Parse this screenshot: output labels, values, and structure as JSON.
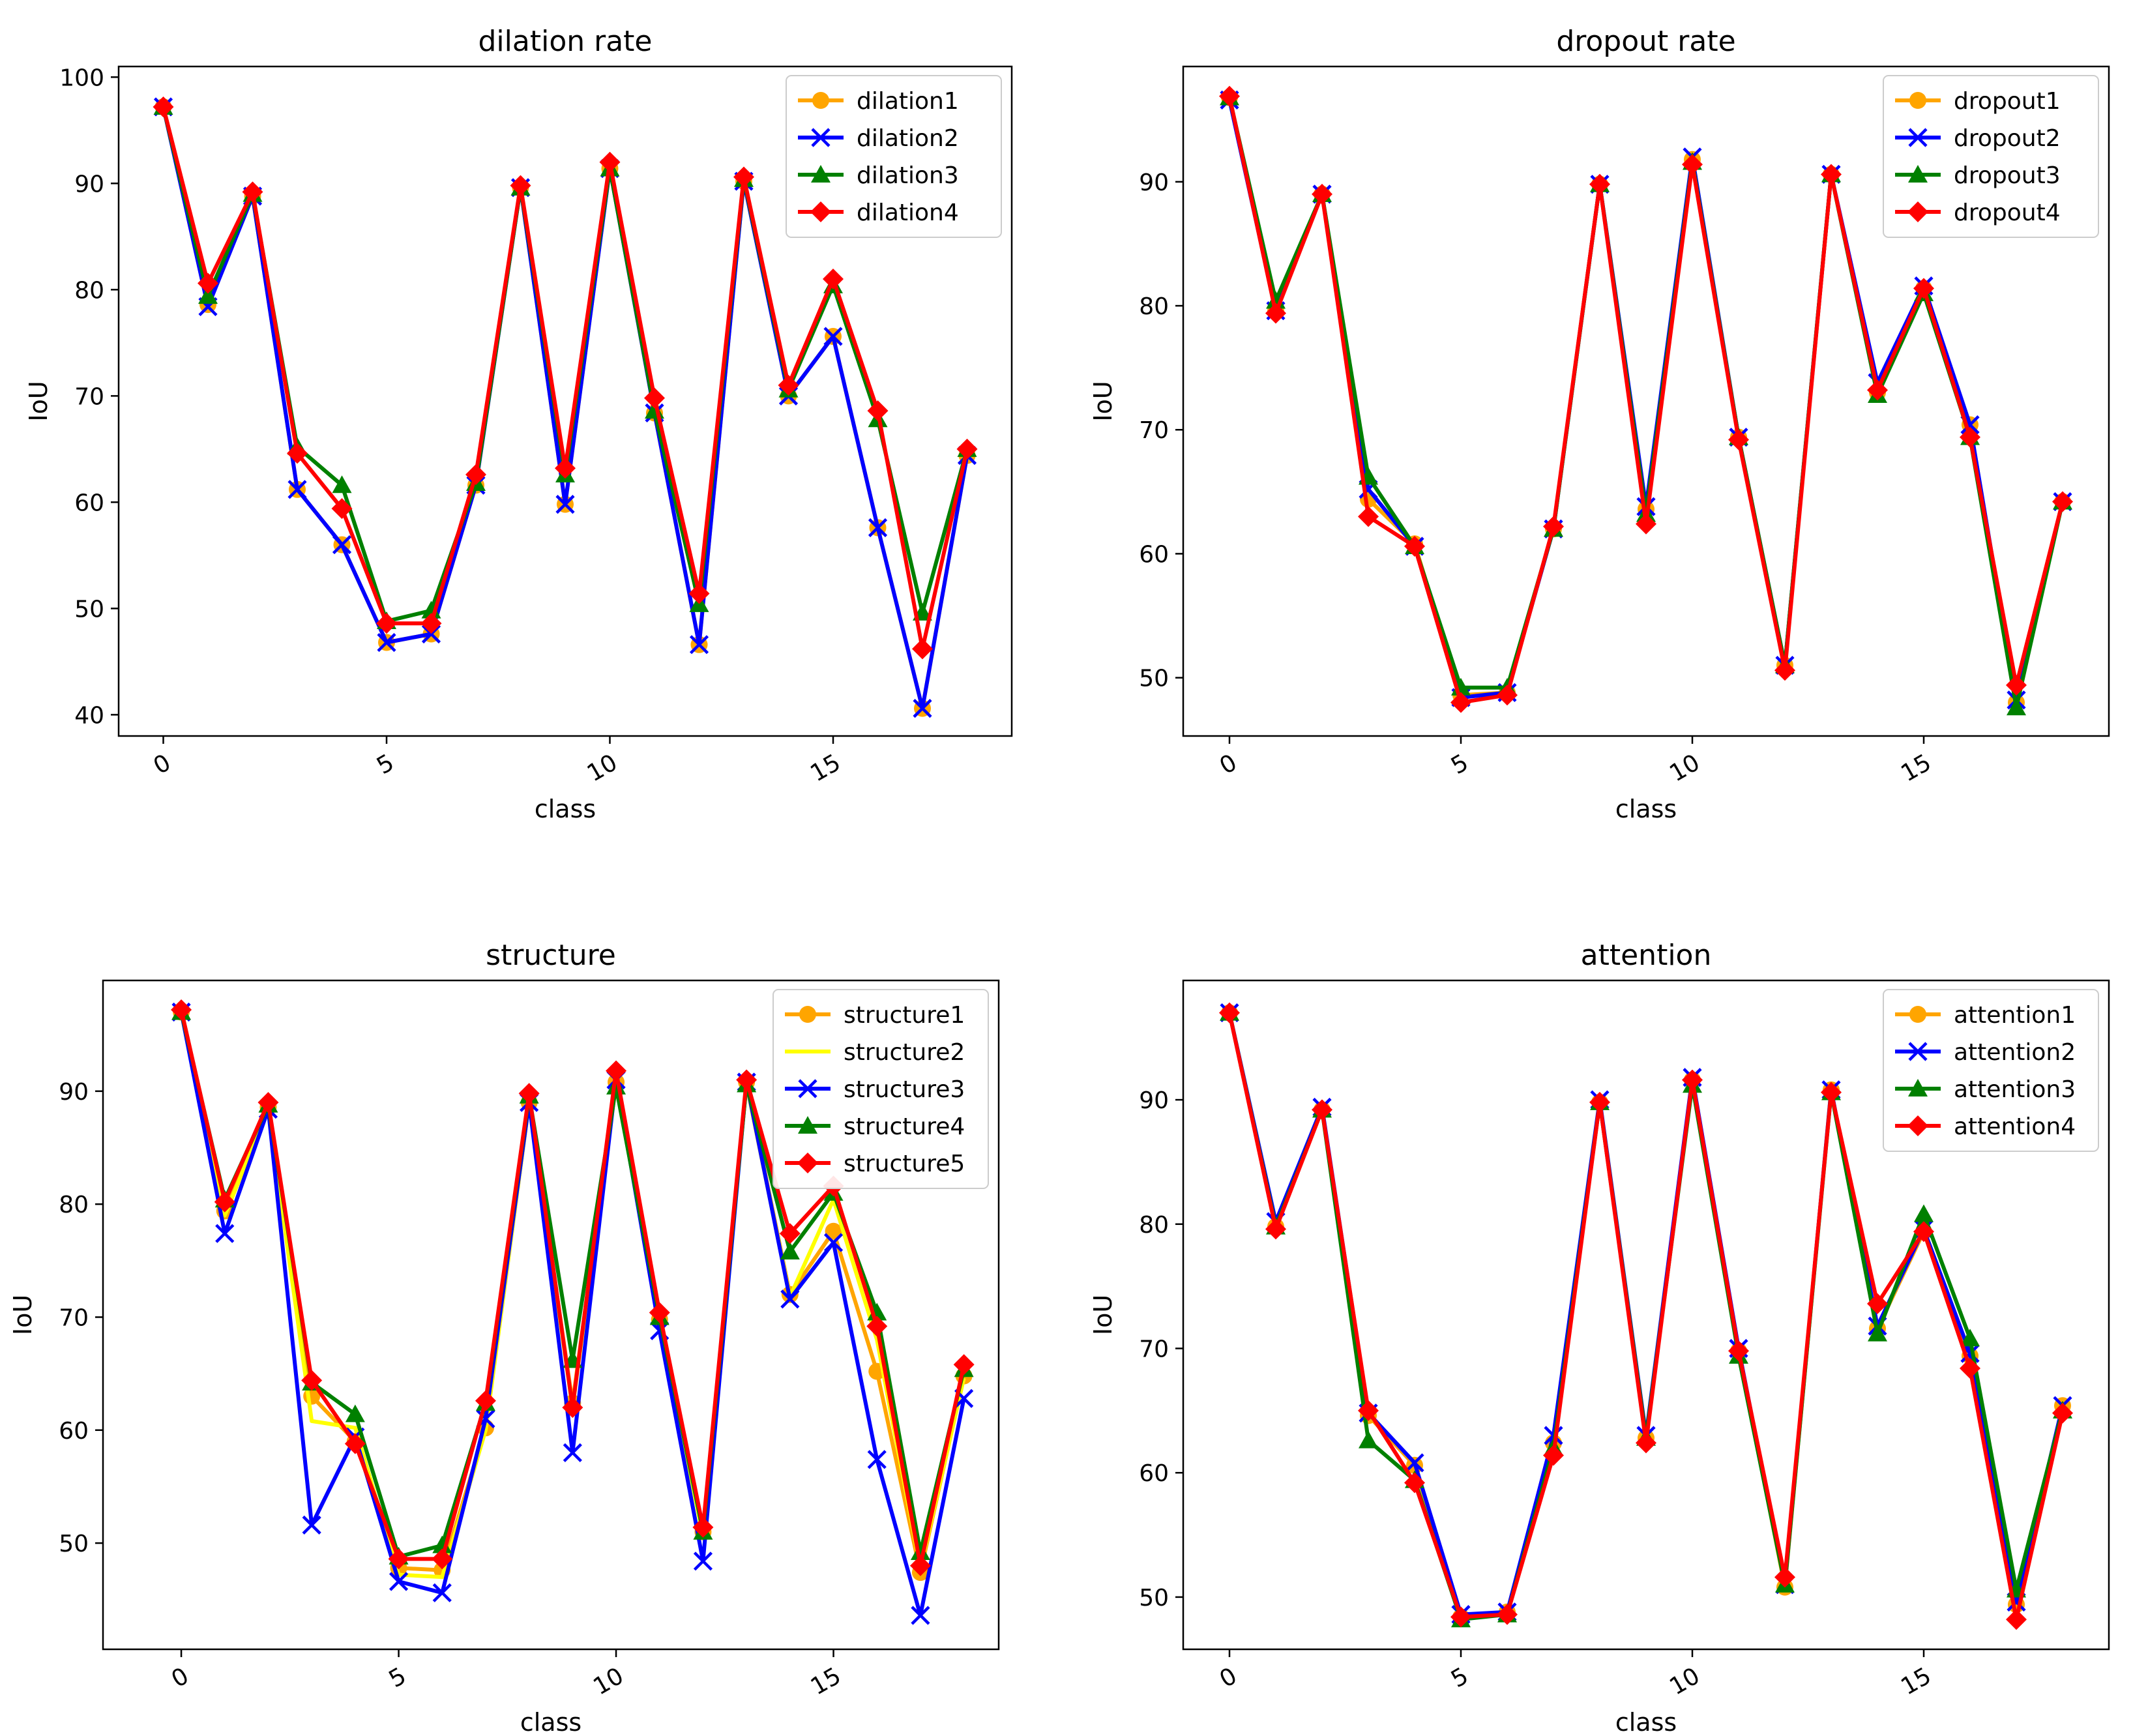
{
  "chart_data": [
    {
      "type": "line",
      "title": "dilation rate",
      "xlabel": "class",
      "ylabel": "IoU",
      "xlim": [
        -1,
        19
      ],
      "ylim": [
        38,
        101
      ],
      "xticks": [
        0,
        5,
        10,
        15
      ],
      "yticks": [
        40,
        50,
        60,
        70,
        80,
        90,
        100
      ],
      "legend_position": "top-right",
      "x": [
        0,
        1,
        2,
        3,
        4,
        5,
        6,
        7,
        8,
        9,
        10,
        11,
        12,
        13,
        14,
        15,
        16,
        17,
        18
      ],
      "series": [
        {
          "name": "dilation1",
          "color": "#FFA500",
          "marker": "circle",
          "values": [
            97.2,
            78.6,
            88.8,
            61.2,
            56.0,
            46.8,
            47.6,
            61.6,
            89.6,
            59.8,
            91.4,
            68.4,
            46.6,
            90.2,
            70.0,
            75.6,
            57.6,
            40.6,
            64.4
          ]
        },
        {
          "name": "dilation2",
          "color": "#0000FF",
          "marker": "x",
          "values": [
            97.2,
            78.4,
            88.8,
            61.2,
            56.0,
            46.8,
            47.6,
            61.6,
            89.6,
            59.8,
            91.4,
            68.4,
            46.6,
            90.2,
            70.0,
            75.6,
            57.6,
            40.6,
            64.4
          ]
        },
        {
          "name": "dilation3",
          "color": "#008000",
          "marker": "triangle",
          "values": [
            97.2,
            79.4,
            89.0,
            65.2,
            61.6,
            48.8,
            49.8,
            61.8,
            89.6,
            62.6,
            91.4,
            68.6,
            50.4,
            90.4,
            70.6,
            80.4,
            67.8,
            49.6,
            65.0
          ]
        },
        {
          "name": "dilation4",
          "color": "#FF0000",
          "marker": "diamond",
          "values": [
            97.2,
            80.6,
            89.2,
            64.6,
            59.4,
            48.6,
            48.6,
            62.6,
            89.8,
            63.2,
            92.0,
            69.8,
            51.4,
            90.6,
            71.0,
            81.0,
            68.6,
            46.2,
            65.0
          ]
        }
      ]
    },
    {
      "type": "line",
      "title": "dropout rate",
      "xlabel": "class",
      "ylabel": "IoU",
      "xlim": [
        -1,
        19
      ],
      "ylim": [
        45.3,
        99.3
      ],
      "xticks": [
        0,
        5,
        10,
        15
      ],
      "yticks": [
        50,
        60,
        70,
        80,
        90
      ],
      "legend_position": "top-right",
      "x": [
        0,
        1,
        2,
        3,
        4,
        5,
        6,
        7,
        8,
        9,
        10,
        11,
        12,
        13,
        14,
        15,
        16,
        17,
        18
      ],
      "series": [
        {
          "name": "dropout1",
          "color": "#FFA500",
          "marker": "circle",
          "values": [
            96.8,
            79.6,
            89.0,
            64.4,
            60.8,
            48.6,
            48.8,
            62.0,
            89.8,
            63.6,
            91.8,
            69.4,
            51.0,
            90.6,
            73.0,
            81.4,
            70.4,
            48.0,
            64.2
          ]
        },
        {
          "name": "dropout2",
          "color": "#0000FF",
          "marker": "x",
          "values": [
            96.6,
            79.6,
            89.0,
            65.2,
            60.6,
            48.4,
            48.8,
            62.0,
            89.8,
            63.8,
            92.0,
            69.4,
            51.0,
            90.6,
            73.8,
            81.6,
            70.4,
            48.2,
            64.2
          ]
        },
        {
          "name": "dropout3",
          "color": "#008000",
          "marker": "triangle",
          "values": [
            96.8,
            80.4,
            89.0,
            66.2,
            60.6,
            49.2,
            49.2,
            62.0,
            89.8,
            63.2,
            91.6,
            69.4,
            51.0,
            90.6,
            72.8,
            81.0,
            69.4,
            47.6,
            64.2
          ]
        },
        {
          "name": "dropout4",
          "color": "#FF0000",
          "marker": "diamond",
          "values": [
            96.9,
            79.4,
            89.0,
            63.0,
            60.6,
            48.0,
            48.6,
            62.2,
            89.8,
            62.4,
            91.4,
            69.2,
            50.6,
            90.6,
            73.2,
            81.4,
            69.4,
            49.4,
            64.2
          ]
        }
      ]
    },
    {
      "type": "line",
      "title": "structure",
      "xlabel": "class",
      "ylabel": "IoU",
      "xlim": [
        -1.8,
        18.8
      ],
      "ylim": [
        40.6,
        99.8
      ],
      "xticks": [
        0,
        5,
        10,
        15
      ],
      "yticks": [
        50,
        60,
        70,
        80,
        90
      ],
      "legend_position": "top-right",
      "x": [
        0,
        1,
        2,
        3,
        4,
        5,
        6,
        7,
        8,
        9,
        10,
        11,
        12,
        13,
        14,
        15,
        16,
        17,
        18
      ],
      "series": [
        {
          "name": "structure1",
          "color": "#FFA500",
          "marker": "circle",
          "values": [
            97.0,
            79.4,
            88.6,
            63.0,
            59.0,
            47.8,
            47.6,
            60.2,
            89.0,
            62.4,
            90.8,
            69.8,
            51.0,
            90.8,
            72.0,
            77.6,
            65.2,
            47.4,
            64.8
          ]
        },
        {
          "name": "structure2",
          "color": "#FFFF00",
          "marker": "none",
          "values": [
            97.0,
            79.0,
            88.4,
            60.8,
            60.2,
            47.2,
            47.0,
            60.0,
            89.0,
            62.0,
            90.6,
            69.6,
            50.6,
            90.6,
            71.8,
            80.4,
            68.0,
            47.8,
            64.6
          ]
        },
        {
          "name": "structure3",
          "color": "#0000FF",
          "marker": "x",
          "values": [
            97.0,
            77.4,
            88.4,
            51.6,
            59.4,
            46.6,
            45.6,
            61.0,
            89.0,
            58.0,
            91.0,
            68.8,
            48.4,
            90.8,
            71.6,
            76.6,
            57.4,
            43.6,
            62.8
          ]
        },
        {
          "name": "structure4",
          "color": "#008000",
          "marker": "triangle",
          "values": [
            97.0,
            80.4,
            88.8,
            64.2,
            61.4,
            48.8,
            49.8,
            62.4,
            89.6,
            66.2,
            90.4,
            70.0,
            51.0,
            90.6,
            75.8,
            81.0,
            70.4,
            49.2,
            65.4
          ]
        },
        {
          "name": "structure5",
          "color": "#FF0000",
          "marker": "diamond",
          "values": [
            97.2,
            80.2,
            89.0,
            64.4,
            58.8,
            48.6,
            48.6,
            62.6,
            89.8,
            62.0,
            91.8,
            70.4,
            51.4,
            91.0,
            77.4,
            81.6,
            69.2,
            48.0,
            65.8
          ]
        }
      ]
    },
    {
      "type": "line",
      "title": "attention",
      "xlabel": "class",
      "ylabel": "IoU",
      "xlim": [
        -1,
        19
      ],
      "ylim": [
        45.8,
        99.6
      ],
      "xticks": [
        0,
        5,
        10,
        15
      ],
      "yticks": [
        50,
        60,
        70,
        80,
        90
      ],
      "legend_position": "top-right",
      "x": [
        0,
        1,
        2,
        3,
        4,
        5,
        6,
        7,
        8,
        9,
        10,
        11,
        12,
        13,
        14,
        15,
        16,
        17,
        18
      ],
      "series": [
        {
          "name": "attention1",
          "color": "#FFA500",
          "marker": "circle",
          "values": [
            97.0,
            79.8,
            89.2,
            64.6,
            60.6,
            48.4,
            48.8,
            62.4,
            89.8,
            62.8,
            91.6,
            69.8,
            50.8,
            90.8,
            71.6,
            79.4,
            69.4,
            49.4,
            65.4
          ]
        },
        {
          "name": "attention2",
          "color": "#0000FF",
          "marker": "x",
          "values": [
            97.0,
            80.2,
            89.4,
            64.8,
            60.8,
            48.6,
            48.8,
            63.0,
            90.0,
            63.0,
            91.8,
            70.0,
            51.0,
            90.8,
            71.8,
            79.6,
            69.6,
            49.6,
            65.4
          ]
        },
        {
          "name": "attention3",
          "color": "#008000",
          "marker": "triangle",
          "values": [
            97.0,
            79.8,
            89.2,
            62.6,
            59.4,
            48.2,
            48.6,
            62.0,
            89.8,
            62.8,
            91.2,
            69.4,
            51.0,
            90.6,
            71.2,
            80.8,
            70.8,
            50.6,
            65.0
          ]
        },
        {
          "name": "attention4",
          "color": "#FF0000",
          "marker": "diamond",
          "values": [
            97.0,
            79.6,
            89.2,
            65.0,
            59.2,
            48.4,
            48.6,
            61.4,
            89.8,
            62.4,
            91.6,
            69.8,
            51.6,
            90.6,
            73.6,
            79.4,
            68.4,
            48.2,
            64.8
          ]
        }
      ]
    }
  ]
}
